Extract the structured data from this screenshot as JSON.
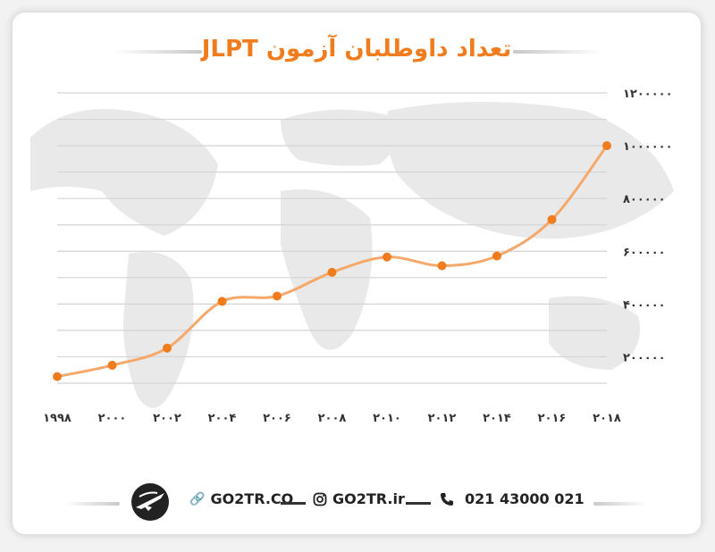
{
  "title": "تعداد داوطلبان آزمون JLPT",
  "colors": {
    "accent": "#f07c1e",
    "line": "#f5a86a",
    "grid": "#d4d4d4",
    "map": "#e9e9e9"
  },
  "footer": {
    "website": "GO2TR.CO",
    "instagram": "GO2TR.ir",
    "phone": "021 43000 021",
    "icons": [
      "logo-icon",
      "link-icon",
      "instagram-icon",
      "phone-icon"
    ]
  },
  "chart_data": {
    "type": "line",
    "x": [
      1998,
      2000,
      2002,
      2004,
      2006,
      2008,
      2010,
      2012,
      2014,
      2016,
      2018
    ],
    "x_tick_labels": [
      "۱۹۹۸",
      "۲۰۰۰",
      "۲۰۰۲",
      "۲۰۰۴",
      "۲۰۰۶",
      "۲۰۰۸",
      "۲۰۱۰",
      "۲۰۱۲",
      "۲۰۱۴",
      "۲۰۱۶",
      "۲۰۱۸"
    ],
    "series": [
      {
        "values": [
          125000,
          168000,
          233000,
          410000,
          430000,
          520000,
          578000,
          545000,
          582000,
          720000,
          1000000
        ]
      }
    ],
    "y_ticks": [
      200000,
      400000,
      600000,
      800000,
      1000000,
      1200000
    ],
    "y_tick_labels": [
      "۲۰۰۰۰۰",
      "۴۰۰۰۰۰",
      "۶۰۰۰۰۰",
      "۸۰۰۰۰۰",
      "۱۰۰۰۰۰۰",
      "۱۲۰۰۰۰۰"
    ],
    "ylim": [
      100000,
      1200000
    ],
    "grid": true,
    "y_axis_side": "right",
    "legend": "none"
  }
}
